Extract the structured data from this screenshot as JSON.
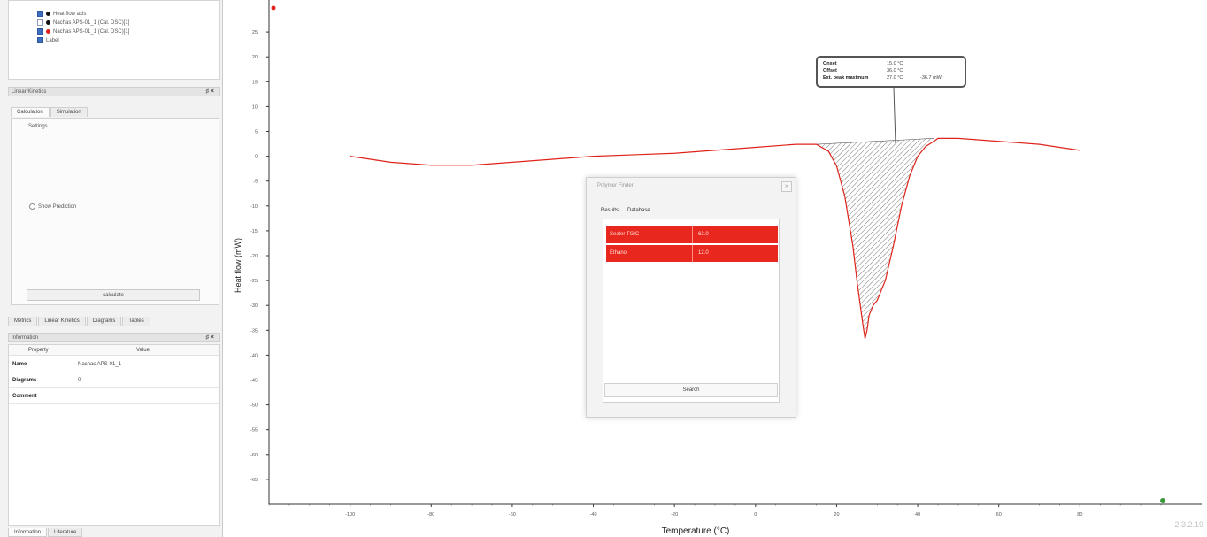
{
  "legend": {
    "items": [
      {
        "label": "Heat flow axis",
        "checked": true,
        "dot": "#111111"
      },
      {
        "label": "Nachas APS-01_1 (Cal. DSC)[1]",
        "checked": false,
        "dot": "#111111"
      },
      {
        "label": "Nachas APS-01_1 (Cal. DSC)[1]",
        "checked": true,
        "dot": "#e0231a"
      },
      {
        "label": "Label",
        "checked": true,
        "dot": null
      }
    ]
  },
  "kinetics_panel": {
    "title": "Linear Kinetics",
    "tabs": [
      "Calculation",
      "Simulation"
    ],
    "settings_label": "Settings",
    "radio_label": "Show Prediction",
    "calculate_label": "calculate"
  },
  "left_bottom_tabs": [
    "Metrics",
    "Linear Kinetics",
    "Diagrams",
    "Tables"
  ],
  "information": {
    "title": "Information",
    "col_property": "Property",
    "col_value": "Value",
    "rows": [
      {
        "key": "Name",
        "value": "Nachas APS-01_1"
      },
      {
        "key": "Diagrams",
        "value": "0"
      },
      {
        "key": "Comment",
        "value": ""
      }
    ],
    "bottom_tabs": [
      "Information",
      "Literature"
    ]
  },
  "tooltip": {
    "rows": [
      {
        "key": "Onset",
        "value": "15.0 °C",
        "extra": ""
      },
      {
        "key": "Offset",
        "value": "36.0 °C",
        "extra": ""
      },
      {
        "key": "Ext. peak maximum",
        "value": "27.0 °C",
        "extra": "-36.7 mW"
      }
    ]
  },
  "dialog": {
    "title": "Polymer Finder",
    "tabs": [
      "Results",
      "Database"
    ],
    "results": [
      {
        "name": "Sealer TGIC",
        "score": "63.0"
      },
      {
        "name": "Ethanol",
        "score": "12.0"
      }
    ],
    "search_label": "Search"
  },
  "version": "2.3.2.19",
  "chart_data": {
    "type": "line",
    "xlabel": "Temperature (°C)",
    "ylabel": "Heat flow (mW)",
    "xlim": [
      -120,
      100
    ],
    "ylim": [
      -70,
      30
    ],
    "x_ticks": [
      -100,
      -80,
      -60,
      -40,
      -20,
      0,
      20,
      40,
      60,
      80
    ],
    "y_ticks": [
      25,
      20,
      15,
      10,
      5,
      0,
      -5,
      -10,
      -15,
      -20,
      -25,
      -30,
      -35,
      -40,
      -45,
      -50,
      -55,
      -60,
      -65
    ],
    "series": [
      {
        "color": "#e0231a",
        "x": [
          -100,
          -90,
          -80,
          -70,
          -60,
          -50,
          -40,
          -30,
          -20,
          -10,
          0,
          10,
          15,
          18,
          20,
          22,
          24,
          25,
          26,
          26.5,
          27,
          27.5,
          28,
          29,
          30,
          32,
          34,
          36,
          38,
          40,
          42,
          44,
          45,
          50,
          60,
          70,
          80
        ],
        "y": [
          0.0,
          -1.2,
          -1.8,
          -1.8,
          -1.2,
          -0.6,
          0.0,
          0.3,
          0.6,
          1.2,
          1.8,
          2.4,
          2.4,
          1.0,
          -2.0,
          -8.0,
          -18.0,
          -25.0,
          -31.0,
          -34.0,
          -36.7,
          -35.0,
          -32.0,
          -30.0,
          -29.0,
          -25.0,
          -18.0,
          -10.0,
          -4.0,
          0.0,
          2.0,
          3.0,
          3.6,
          3.6,
          3.0,
          2.4,
          1.2
        ]
      }
    ],
    "peak_area": {
      "from": 15,
      "to": 44,
      "baseline": [
        2.4,
        3.6
      ]
    },
    "annotations": [
      "Onset",
      "Offset",
      "Ext. peak maximum"
    ]
  }
}
